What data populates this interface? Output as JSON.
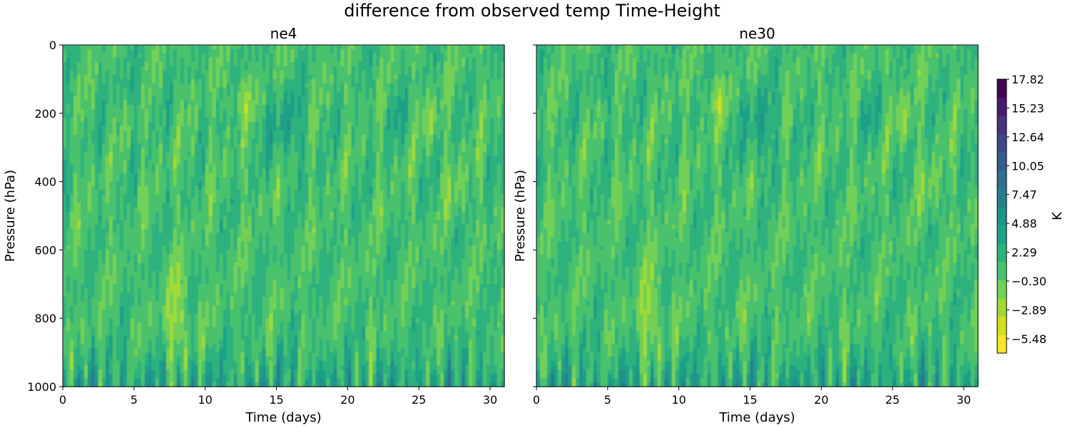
{
  "chart_data": {
    "type": "heatmap",
    "title": "difference from observed temp Time-Height",
    "panels": [
      {
        "title": "ne4",
        "xlabel": "Time (days)",
        "ylabel": "Pressure (hPa)",
        "xlim": [
          0,
          31
        ],
        "ylim": [
          1000,
          0
        ],
        "xticks": [
          0,
          5,
          10,
          15,
          20,
          25,
          30
        ],
        "yticks": [
          0,
          200,
          400,
          600,
          800,
          1000
        ],
        "show_ytick_labels": true
      },
      {
        "title": "ne30",
        "xlabel": "Time (days)",
        "ylabel": "Pressure (hPa)",
        "xlim": [
          0,
          31
        ],
        "ylim": [
          1000,
          0
        ],
        "xticks": [
          0,
          5,
          10,
          15,
          20,
          25,
          30
        ],
        "yticks": [
          0,
          200,
          400,
          600,
          800,
          1000
        ],
        "show_ytick_labels": false
      }
    ],
    "colorbar": {
      "label": "K",
      "colormap": "viridis_r",
      "range": [
        -6.77,
        17.82
      ],
      "tick_values": [
        17.82,
        15.23,
        12.64,
        10.05,
        7.47,
        4.88,
        2.29,
        -0.3,
        -2.89,
        -5.48
      ],
      "tick_labels": [
        "17.82",
        "15.23",
        "12.64",
        "10.05",
        "7.47",
        "4.88",
        "2.29",
        "−0.30",
        "−2.89",
        "−5.48"
      ]
    },
    "summary": {
      "dominant_range_K": [
        -3,
        4
      ],
      "warm_anomaly_regions": [
        "near-surface 850-1000 hPa, periodic daily streaks",
        "upper troposphere 150-350 hPa around days 14-17 and 22-24"
      ],
      "cool_anomaly_regions": [
        "mid-levels days 7-9 around 700-900 hPa",
        "upper levels around days 10-13 and 25-26 near 150-250 hPa"
      ]
    }
  }
}
